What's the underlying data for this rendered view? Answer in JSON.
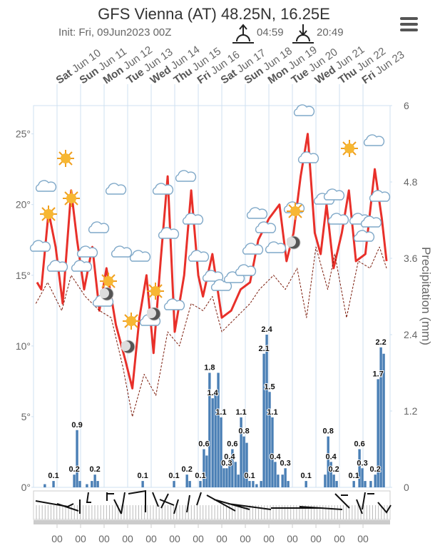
{
  "chart_data": {
    "type": "line",
    "title": "GFS Vienna (AT) 48.25N, 16.25E",
    "subtitle": "Init: Fri, 09Jun2023 00Z",
    "sunrise": "04:59",
    "sunset": "20:49",
    "y2_label": "Precipitation (mm)",
    "xlim": [
      0,
      15.15
    ],
    "ylim": [
      0,
      27
    ],
    "y2lim": [
      0,
      6
    ],
    "yticks": [
      {
        "value": 0,
        "label": "0°"
      },
      {
        "value": 5,
        "label": "5°"
      },
      {
        "value": 10,
        "label": "10°"
      },
      {
        "value": 15,
        "label": "15°"
      },
      {
        "value": 20,
        "label": "20°"
      },
      {
        "value": 25,
        "label": "25°"
      }
    ],
    "y2ticks": [
      0,
      1.2,
      2.4,
      3.6,
      4.8,
      6
    ],
    "xticks": [
      {
        "value": 1,
        "label": "00"
      },
      {
        "value": 2,
        "label": "00"
      },
      {
        "value": 3,
        "label": "00"
      },
      {
        "value": 4,
        "label": "00"
      },
      {
        "value": 5,
        "label": "00"
      },
      {
        "value": 6,
        "label": "00"
      },
      {
        "value": 7,
        "label": "00"
      },
      {
        "value": 8,
        "label": "00"
      },
      {
        "value": 9,
        "label": "00"
      },
      {
        "value": 10,
        "label": "00"
      },
      {
        "value": 11,
        "label": "00"
      },
      {
        "value": 12,
        "label": "00"
      },
      {
        "value": 13,
        "label": "00"
      },
      {
        "value": 14,
        "label": "00"
      }
    ],
    "day_ticks": [
      {
        "value": 1,
        "weekday": "Sat",
        "date": "Jun 10"
      },
      {
        "value": 2,
        "weekday": "Sun",
        "date": "Jun 11"
      },
      {
        "value": 3,
        "weekday": "Mon",
        "date": "Jun 12"
      },
      {
        "value": 4,
        "weekday": "Tue",
        "date": "Jun 13"
      },
      {
        "value": 5,
        "weekday": "Wed",
        "date": "Jun 14"
      },
      {
        "value": 6,
        "weekday": "Thu",
        "date": "Jun 15"
      },
      {
        "value": 7,
        "weekday": "Fri",
        "date": "Jun 16"
      },
      {
        "value": 8,
        "weekday": "Sat",
        "date": "Jun 17"
      },
      {
        "value": 9,
        "weekday": "Sun",
        "date": "Jun 18"
      },
      {
        "value": 10,
        "weekday": "Mon",
        "date": "Jun 19"
      },
      {
        "value": 11,
        "weekday": "Tue",
        "date": "Jun 20"
      },
      {
        "value": 12,
        "weekday": "Wed",
        "date": "Jun 21"
      },
      {
        "value": 13,
        "weekday": "Thu",
        "date": "Jun 22"
      },
      {
        "value": 14,
        "weekday": "Fri",
        "date": "Jun 23"
      }
    ],
    "grid": true,
    "series": [
      {
        "type": "line",
        "color": "#e8302a",
        "x": [
          0.15,
          0.33,
          0.64,
          0.94,
          1.24,
          1.6,
          1.85,
          2.15,
          2.5,
          2.8,
          3.1,
          3.5,
          3.9,
          4.2,
          4.5,
          4.8,
          5.1,
          5.4,
          5.7,
          6.0,
          6.4,
          6.7,
          7.0,
          7.2,
          7.6,
          8.0,
          8.4,
          8.8,
          9.2,
          9.55,
          10.0,
          10.45,
          10.75,
          11.05,
          11.35,
          11.65,
          11.95,
          12.2,
          12.45,
          12.75,
          13.1,
          13.4,
          13.7,
          14.1,
          14.5,
          14.8,
          15.0
        ],
        "values": [
          14.5,
          14.0,
          19.5,
          17.0,
          13.0,
          21.0,
          17.5,
          14.0,
          17.0,
          12.5,
          15.5,
          11.5,
          9.0,
          7.0,
          12.0,
          15.0,
          9.5,
          16.0,
          22.0,
          11.0,
          15.0,
          21.0,
          15.0,
          13.5,
          16.5,
          12.0,
          12.5,
          14.0,
          14.5,
          17.5,
          19.0,
          20.0,
          16.0,
          18.0,
          22.0,
          25.0,
          18.0,
          16.5,
          20.0,
          15.5,
          18.0,
          21.0,
          16.0,
          16.5,
          22.5,
          19.0,
          16.0
        ]
      },
      {
        "type": "line",
        "color": "#7a1a0a",
        "dashed": true,
        "x": [
          0.1,
          0.6,
          1.2,
          1.6,
          2.2,
          2.8,
          3.3,
          3.8,
          4.2,
          4.7,
          5.2,
          5.7,
          6.2,
          6.7,
          7.2,
          7.6,
          8.0,
          8.6,
          9.2,
          9.6,
          10.2,
          10.7,
          11.2,
          11.6,
          12.0,
          12.5,
          12.8,
          13.3,
          13.8,
          14.3,
          14.7,
          15.0
        ],
        "values": [
          13.0,
          14.5,
          12.5,
          15.0,
          13.5,
          12.5,
          12.0,
          8.5,
          5.0,
          8.0,
          6.5,
          11.0,
          10.0,
          13.0,
          12.5,
          13.5,
          11.0,
          12.0,
          13.0,
          14.0,
          15.0,
          14.0,
          15.5,
          12.0,
          17.0,
          14.0,
          16.5,
          12.0,
          16.0,
          15.5,
          17.0,
          15.5
        ]
      },
      {
        "type": "bar",
        "axis": "y2",
        "color": "#4a7fb5",
        "x": [
          0.48,
          0.85,
          1.73,
          1.85,
          1.97,
          2.27,
          2.48,
          2.61,
          2.73,
          4.64,
          5.97,
          6.52,
          6.64,
          7.09,
          7.24,
          7.36,
          7.48,
          7.61,
          7.73,
          7.85,
          7.97,
          8.09,
          8.21,
          8.33,
          8.45,
          8.58,
          8.7,
          8.82,
          8.94,
          9.06,
          9.18,
          9.33,
          9.48,
          9.67,
          9.79,
          9.91,
          10.03,
          10.15,
          10.27,
          10.39,
          10.58,
          10.7,
          10.82,
          11.58,
          12.39,
          12.52,
          12.64,
          12.76,
          12.88,
          13.61,
          13.85,
          13.97,
          14.09,
          14.33,
          14.52,
          14.64,
          14.76,
          14.88
        ],
        "values": [
          0.05,
          0.1,
          0.2,
          0.9,
          0.1,
          0.05,
          0.1,
          0.2,
          0.1,
          0.1,
          0.1,
          0.2,
          0.1,
          0.1,
          0.6,
          0.5,
          1.8,
          1.4,
          1.5,
          1.8,
          1.1,
          0.3,
          0.3,
          0.4,
          0.6,
          0.4,
          0.2,
          1.1,
          0.8,
          0.7,
          0.1,
          0.1,
          0.05,
          0.1,
          2.1,
          2.4,
          1.5,
          1.1,
          0.4,
          0.2,
          0.2,
          0.3,
          0.1,
          0.1,
          0.2,
          0.8,
          0.4,
          0.2,
          0.1,
          0.1,
          0.6,
          0.3,
          0.1,
          0.1,
          0.2,
          1.7,
          2.2,
          2.1
        ],
        "value_labels": [
          null,
          "0.1",
          "0.2",
          "0.9",
          null,
          null,
          null,
          "0.2",
          null,
          "0.1",
          "0.1",
          "0.2",
          null,
          "0.1",
          "0.6",
          null,
          "1.8",
          "1.4",
          null,
          null,
          "1.1",
          null,
          "0.3",
          "0.4",
          "0.6",
          null,
          null,
          "1.1",
          "0.8",
          null,
          "0.1",
          null,
          null,
          null,
          "2.1",
          "2.4",
          "1.5",
          "1.1",
          "0.4",
          null,
          null,
          "0.3",
          null,
          "0.1",
          null,
          "0.8",
          "0.4",
          "0.2",
          null,
          "0.1",
          "0.6",
          "0.3",
          null,
          null,
          "0.2",
          "1.7",
          "2.2",
          null
        ]
      }
    ]
  }
}
